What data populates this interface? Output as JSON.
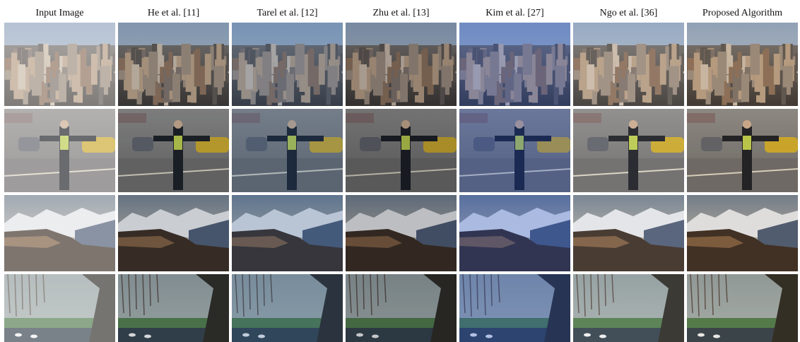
{
  "headers": [
    "Input Image",
    "He et al. [11]",
    "Tarel et al. [12]",
    "Zhu et al. [13]",
    "Kim et al. [27]",
    "Ngo et al. [36]",
    "Proposed Algorithm"
  ]
}
